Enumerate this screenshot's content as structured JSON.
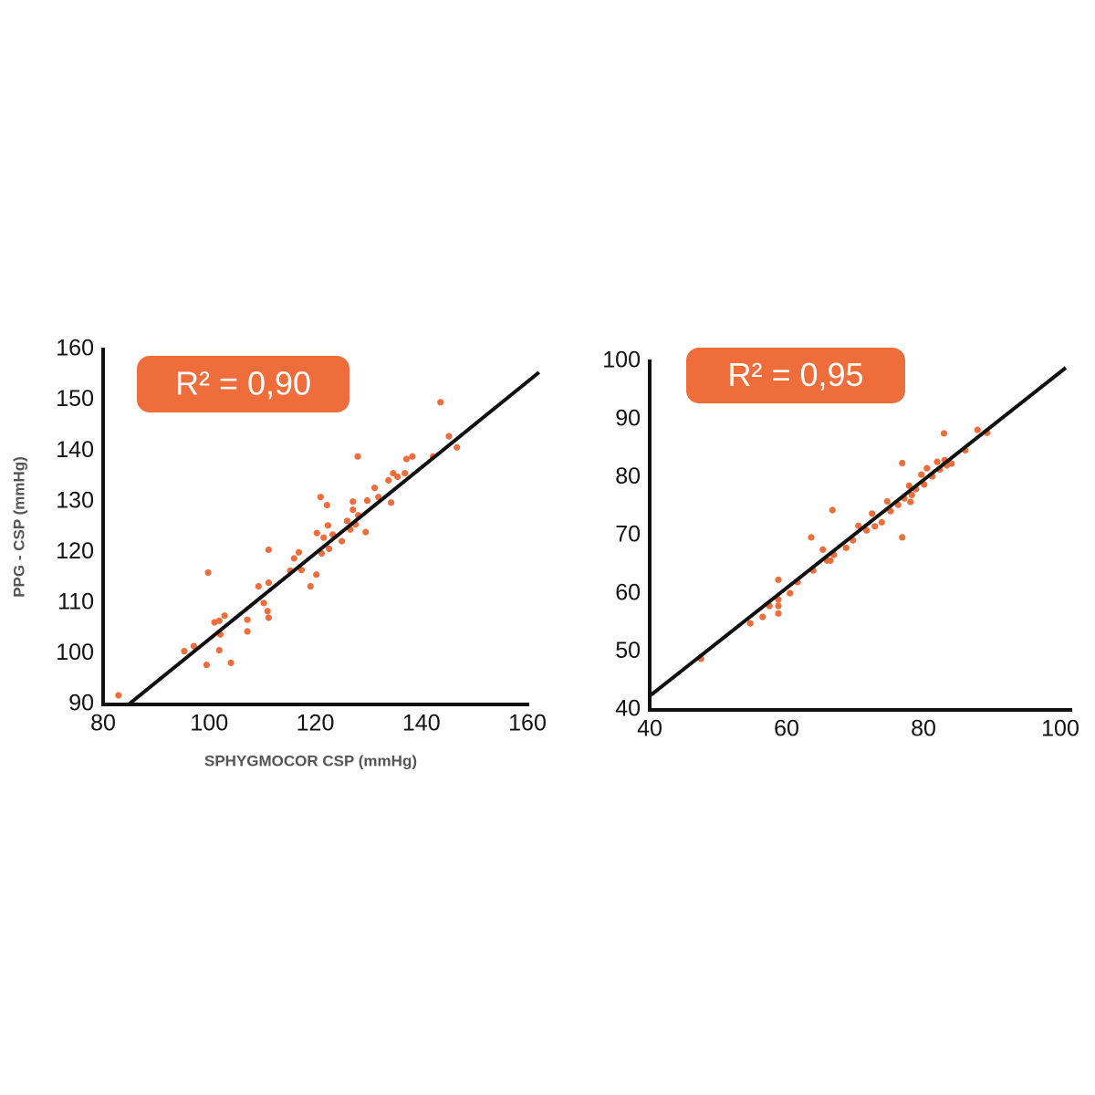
{
  "chart_data": [
    {
      "type": "scatter",
      "color": "#ef6c3b",
      "annotation": "R² = 0,90",
      "xlabel": "SPHYGMOCOR CSP (mmHg)",
      "ylabel": "PPG - CSP (mmHg)",
      "xlim": [
        80,
        160
      ],
      "ylim": [
        90,
        160
      ],
      "xticks": [
        80,
        100,
        120,
        140,
        160
      ],
      "yticks": [
        90,
        100,
        110,
        120,
        130,
        140,
        150,
        160
      ],
      "x": [
        82.9,
        95.3,
        97.1,
        99.8,
        99.5,
        101.0,
        101.9,
        102.9,
        102.1,
        101.9,
        104.1,
        107.2,
        107.2,
        109.3,
        110.3,
        111.0,
        111.2,
        111.2,
        111.2,
        115.3,
        116.0,
        116.9,
        117.4,
        119.1,
        120.2,
        120.3,
        121.0,
        121.2,
        121.6,
        122.2,
        122.4,
        122.6,
        123.3,
        125.0,
        126.0,
        126.6,
        127.1,
        127.1,
        127.6,
        128.1,
        128.0,
        129.5,
        129.8,
        131.2,
        131.9,
        133.8,
        134.3,
        134.7,
        135.5,
        136.9,
        137.2,
        138.3,
        143.6,
        142.2,
        145.2,
        146.7
      ],
      "values": [
        91.8,
        100.5,
        101.5,
        116,
        97.8,
        106.2,
        106.5,
        107.5,
        103.8,
        100.7,
        98.2,
        106.7,
        104.4,
        113.3,
        110,
        108.4,
        107.1,
        114,
        120.5,
        116.4,
        118.8,
        120,
        116.5,
        113.3,
        115.6,
        123.8,
        130.9,
        119.8,
        122.9,
        129.3,
        125.3,
        120.7,
        123.5,
        122.2,
        126.2,
        124.5,
        130,
        128.4,
        125.5,
        127.3,
        138.9,
        124,
        130.2,
        132.7,
        130.9,
        134.2,
        129.8,
        135.6,
        134.9,
        135.6,
        138.4,
        138.9,
        149.6,
        138.9,
        142.9,
        140.7
      ],
      "fit_line": {
        "x": [
          84.8,
          162.2
        ],
        "y": [
          90,
          155.5
        ]
      }
    },
    {
      "type": "scatter",
      "color": "#ef6c3b",
      "annotation": "R² = 0,95",
      "xlim": [
        40,
        100
      ],
      "ylim": [
        40,
        100
      ],
      "xticks": [
        40,
        60,
        80,
        100
      ],
      "yticks": [
        40,
        50,
        60,
        70,
        80,
        90,
        100
      ],
      "x": [
        47.5,
        54.7,
        56.5,
        57.5,
        58.8,
        58.8,
        58.8,
        58.8,
        60.5,
        61.6,
        63.6,
        63.9,
        65.3,
        65.9,
        66.4,
        66.7,
        66.9,
        68.7,
        69.7,
        70.5,
        71.7,
        72.5,
        72.9,
        73.9,
        74.7,
        75.2,
        76.3,
        76.9,
        76.9,
        77.2,
        77.9,
        78.1,
        78.3,
        78.9,
        79.7,
        80.1,
        80.5,
        81.3,
        82.0,
        82.4,
        83.0,
        83.1,
        83.4,
        84.1,
        86.1,
        87.9,
        89.3
      ],
      "values": [
        48.8,
        54.9,
        56,
        57.9,
        62.4,
        59,
        57.9,
        56.6,
        60.1,
        62,
        69.7,
        64,
        67.6,
        65.7,
        65.7,
        74.4,
        66.7,
        67.9,
        69.2,
        71.7,
        70.9,
        73.8,
        71.6,
        72.3,
        75.9,
        74.2,
        75.3,
        82.5,
        69.7,
        76.4,
        78.6,
        75.8,
        77,
        78,
        80.5,
        78.8,
        81.6,
        80.2,
        82.7,
        81.4,
        87.6,
        83,
        82.1,
        82.4,
        84.7,
        88.2,
        87.7
      ],
      "fit_line": {
        "x": [
          40,
          100.8
        ],
        "y": [
          42.4,
          98.9
        ]
      }
    }
  ]
}
